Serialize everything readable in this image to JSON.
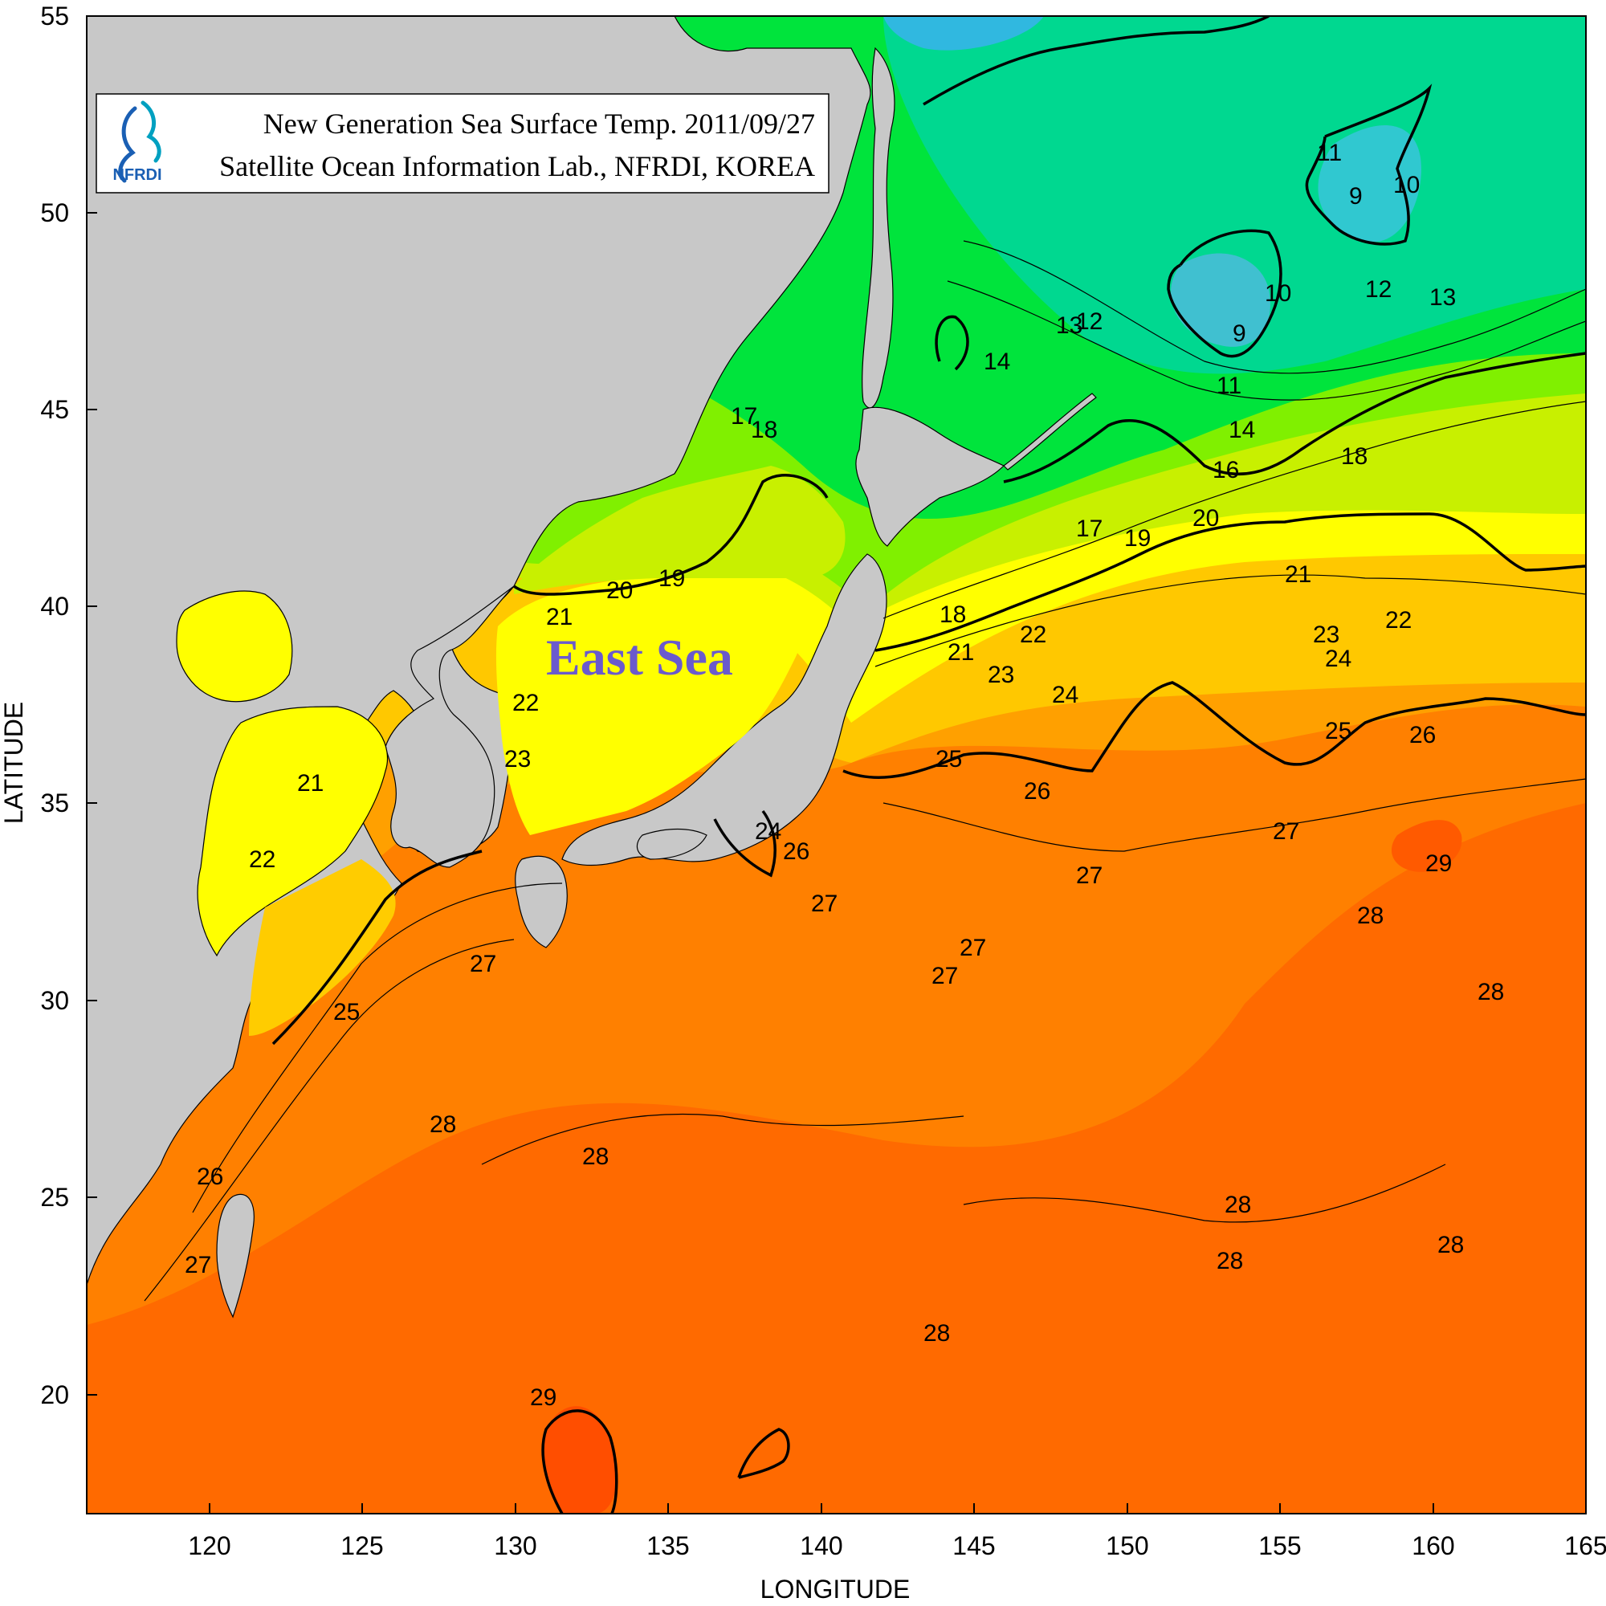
{
  "title_box": {
    "line1": "New Generation Sea Surface Temp. 2011/09/27",
    "line2": "Satellite Ocean Information Lab., NFRDI, KOREA",
    "logo_text": "NFRDI"
  },
  "axes": {
    "xlabel": "LONGITUDE",
    "ylabel": "LATITUDE",
    "x_ticks": [
      "120",
      "125",
      "130",
      "135",
      "140",
      "145",
      "150",
      "155",
      "160",
      "165"
    ],
    "y_ticks": [
      "55",
      "50",
      "45",
      "40",
      "35",
      "30",
      "25",
      "20"
    ],
    "x_range": [
      116,
      165
    ],
    "y_range": [
      17,
      55
    ]
  },
  "sea_label": "East Sea",
  "contour_labels": {
    "c9a": "9",
    "c9b": "9",
    "c10a": "10",
    "c10b": "10",
    "c11a": "11",
    "c11b": "11",
    "c12a": "12",
    "c12b": "12",
    "c13a": "13",
    "c13b": "13",
    "c14a": "14",
    "c14b": "14",
    "c16": "16",
    "c17a": "17",
    "c17b": "17",
    "c18a": "18",
    "c18b": "18",
    "c18c": "18",
    "c19a": "19",
    "c19b": "19",
    "c20a": "20",
    "c20b": "20",
    "c21a": "21",
    "c21b": "21",
    "c21c": "21",
    "c21d": "21",
    "c22a": "22",
    "c22b": "22",
    "c22c": "22",
    "c22d": "22",
    "c23a": "23",
    "c23b": "23",
    "c23c": "23",
    "c24a": "24",
    "c24b": "24",
    "c24c": "24",
    "c25a": "25",
    "c25b": "25",
    "c25c": "25",
    "c26a": "26",
    "c26b": "26",
    "c26c": "26",
    "c26d": "26",
    "c27a": "27",
    "c27b": "27",
    "c27c": "27",
    "c27d": "27",
    "c27e": "27",
    "c27f": "27",
    "c27g": "27",
    "c28a": "28",
    "c28b": "28",
    "c28c": "28",
    "c28d": "28",
    "c28e": "28",
    "c28f": "28",
    "c28g": "28",
    "c28h": "28",
    "c29a": "29",
    "c29b": "29"
  },
  "colors": {
    "land": "#c8c8c8",
    "sst_9": "#20c8d8",
    "sst_12": "#00d8a0",
    "sst_15": "#00e040",
    "sst_18": "#80f000",
    "sst_20": "#c8f000",
    "sst_22": "#ffff00",
    "sst_24": "#ffcc00",
    "sst_26": "#ff9a00",
    "sst_28": "#ff7000",
    "sst_29": "#ff5000"
  }
}
